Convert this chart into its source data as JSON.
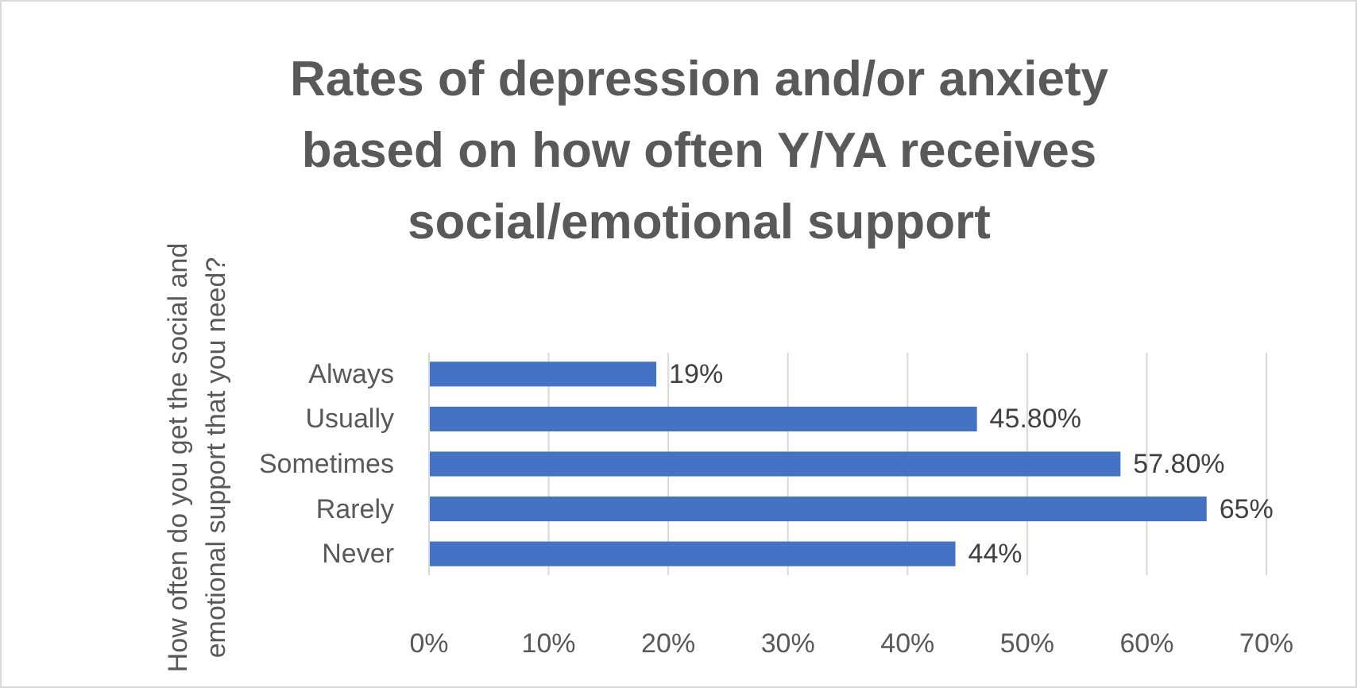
{
  "chart_data": {
    "type": "bar",
    "orientation": "horizontal",
    "title": "Rates of depression and/or anxiety based on how often Y/YA receives social/emotional support",
    "ylabel": "How often do you get the social and emotional support that you need?",
    "categories": [
      "Always",
      "Usually",
      "Sometimes",
      "Rarely",
      "Never"
    ],
    "values": [
      19,
      45.8,
      57.8,
      65,
      44
    ],
    "value_labels": [
      "19%",
      "45.80%",
      "57.80%",
      "65%",
      "44%"
    ],
    "color": "#4472c4",
    "xlim": [
      0,
      70
    ],
    "xticks": [
      {
        "value": 0,
        "label": "0%"
      },
      {
        "value": 10,
        "label": "10%"
      },
      {
        "value": 20,
        "label": "20%"
      },
      {
        "value": 30,
        "label": "30%"
      },
      {
        "value": 40,
        "label": "40%"
      },
      {
        "value": 50,
        "label": "50%"
      },
      {
        "value": 60,
        "label": "60%"
      },
      {
        "value": 70,
        "label": "70%"
      }
    ],
    "grid": "x"
  }
}
